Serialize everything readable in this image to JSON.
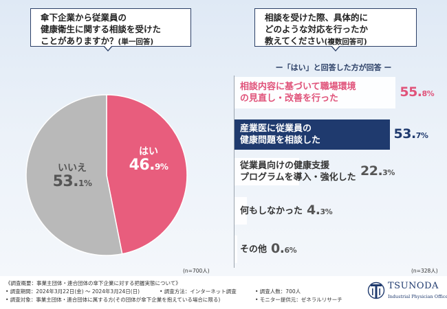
{
  "colors": {
    "navy": "#2b3f66",
    "pink": "#e85d7d",
    "gray": "#b9b9b9",
    "pink_text": "#e0537a",
    "teal": "#3cae9e"
  },
  "question1": {
    "lines": [
      "傘下企業から従業員の",
      "健康衛生に関する相談を受けた",
      "ことがありますか？"
    ],
    "note": "(単一回答)"
  },
  "question2": {
    "lines": [
      "相談を受けた際、具体的に",
      "どのような対応を行ったか",
      "教えてください"
    ],
    "note": "(複数回答可)"
  },
  "subtitle": "ー「はい」と回答した方が回答 ー",
  "pie_labels": {
    "yes": {
      "category": "はい",
      "value_main": "46.",
      "value_small": "9%"
    },
    "no": {
      "category": "いいえ",
      "value_main": "53.",
      "value_small": "1%"
    }
  },
  "n_left": "(n=700人)",
  "n_right": "(n=328人)",
  "bar_labels": [
    {
      "lines": [
        "相談内容に基づいて職場環境",
        "の見直し・改善を行った"
      ],
      "value_main": "55.",
      "value_small": "8%"
    },
    {
      "lines": [
        "産業医に従業員の",
        "健康問題を相談した"
      ],
      "value_main": "53.",
      "value_small": "7%"
    },
    {
      "lines": [
        "従業員向けの健康支援",
        "プログラムを導入・強化した"
      ],
      "value_main": "22.",
      "value_small": "3%"
    },
    {
      "lines": [
        "何もしなかった"
      ],
      "value_main": "4.",
      "value_small": "3%"
    },
    {
      "lines": [
        "その他"
      ],
      "value_main": "0.",
      "value_small": "6%"
    }
  ],
  "footer": {
    "line1": "《調査概要：事業主団体・連合団体の傘下企業に対する把握実態について》",
    "line2a": "• 調査期間：2024年3月22日(金) 〜 2024年3月24日(日)",
    "line2b": "• 調査方法：インターネット調査",
    "line2c": "• 調査人数：700人",
    "line3a": "• 調査対象：事業主団体・連合団体に属する方(その団体が傘下企業を抱えている場合に限る)",
    "line3b": "• モニター提供元：ゼネラルリサーチ"
  },
  "logo": {
    "name": "TSUNODA",
    "sub": "Industrial Physician Office"
  },
  "chart_data": [
    {
      "type": "pie",
      "title": "傘下企業から従業員の健康衛生に関する相談を受けたことがありますか？(単一回答)",
      "categories": [
        "はい",
        "いいえ"
      ],
      "values": [
        46.9,
        53.1
      ],
      "unit": "%",
      "n": "(n=700人)"
    },
    {
      "type": "bar",
      "orientation": "horizontal",
      "title": "相談を受けた際、具体的にどのような対応を行ったか教えてください(複数回答可)",
      "subtitle": "ー「はい」と回答した方が回答 ー",
      "categories": [
        "相談内容に基づいて職場環境の見直し・改善を行った",
        "産業医に従業員の健康問題を相談した",
        "従業員向けの健康支援プログラムを導入・強化した",
        "何もしなかった",
        "その他"
      ],
      "values": [
        55.8,
        53.7,
        22.3,
        4.3,
        0.6
      ],
      "unit": "%",
      "xlim": [
        0,
        60
      ],
      "n": "(n=328人)"
    }
  ]
}
